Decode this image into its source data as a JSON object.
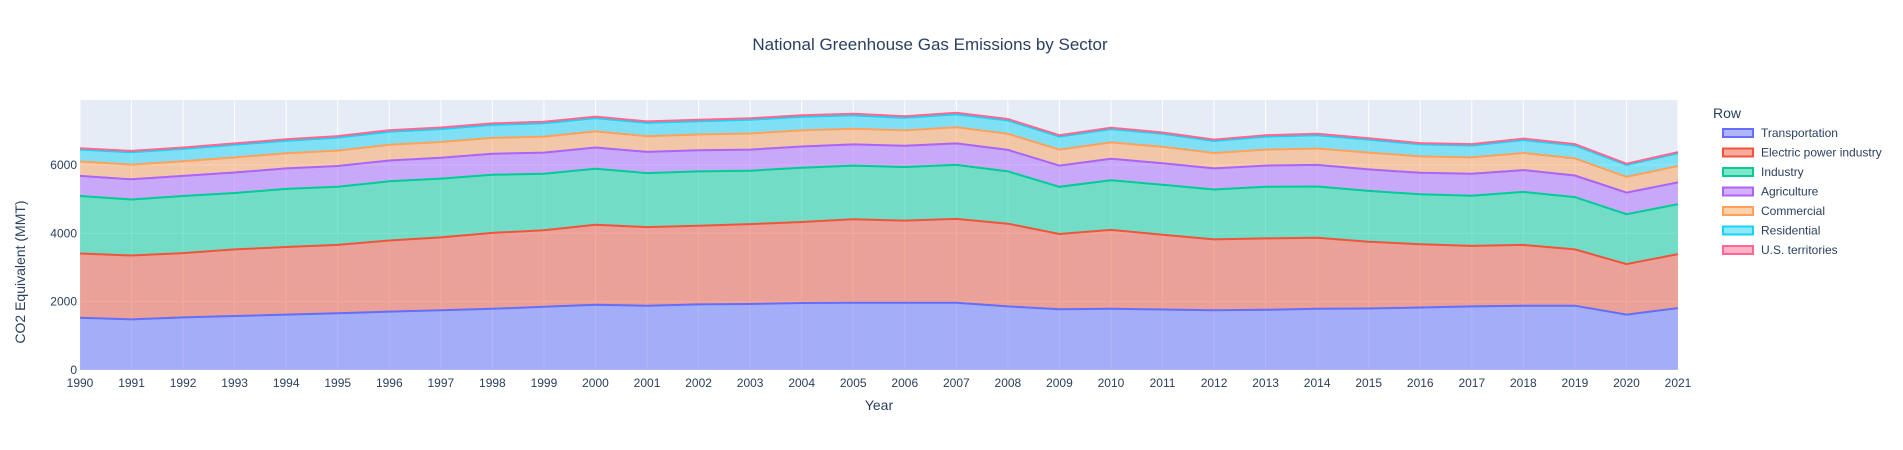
{
  "chart_data": {
    "type": "area",
    "stacked": true,
    "title": "National Greenhouse Gas Emissions by Sector",
    "xlabel": "Year",
    "ylabel": "CO2 Equivalent (MMT)",
    "ylim": [
      0,
      7900
    ],
    "yticks": [
      0,
      2000,
      4000,
      6000
    ],
    "legend_title": "Row",
    "legend_position": "right",
    "x": [
      1990,
      1991,
      1992,
      1993,
      1994,
      1995,
      1996,
      1997,
      1998,
      1999,
      2000,
      2001,
      2002,
      2003,
      2004,
      2005,
      2006,
      2007,
      2008,
      2009,
      2010,
      2011,
      2012,
      2013,
      2014,
      2015,
      2016,
      2017,
      2018,
      2019,
      2020,
      2021
    ],
    "series": [
      {
        "name": "Transportation",
        "color": "#636efa",
        "values": [
          1530,
          1480,
          1540,
          1580,
          1620,
          1660,
          1710,
          1750,
          1790,
          1850,
          1910,
          1880,
          1920,
          1930,
          1960,
          1970,
          1970,
          1970,
          1860,
          1780,
          1790,
          1770,
          1750,
          1760,
          1790,
          1800,
          1830,
          1860,
          1880,
          1880,
          1620,
          1810
        ]
      },
      {
        "name": "Electric power industry",
        "color": "#ef553b",
        "values": [
          1880,
          1870,
          1880,
          1950,
          1980,
          2000,
          2080,
          2130,
          2220,
          2240,
          2340,
          2300,
          2300,
          2340,
          2370,
          2440,
          2400,
          2450,
          2420,
          2200,
          2310,
          2190,
          2070,
          2090,
          2080,
          1950,
          1850,
          1770,
          1780,
          1650,
          1480,
          1580
        ]
      },
      {
        "name": "Industry",
        "color": "#00cc96",
        "values": [
          1680,
          1640,
          1670,
          1650,
          1700,
          1700,
          1730,
          1720,
          1700,
          1650,
          1640,
          1580,
          1590,
          1560,
          1590,
          1570,
          1570,
          1580,
          1530,
          1380,
          1450,
          1460,
          1460,
          1510,
          1500,
          1490,
          1460,
          1470,
          1550,
          1530,
          1460,
          1460
        ]
      },
      {
        "name": "Agriculture",
        "color": "#ab63fa",
        "values": [
          590,
          590,
          590,
          600,
          600,
          610,
          610,
          610,
          620,
          620,
          620,
          620,
          620,
          620,
          620,
          620,
          620,
          630,
          630,
          620,
          630,
          630,
          620,
          620,
          630,
          630,
          630,
          640,
          640,
          630,
          630,
          640
        ]
      },
      {
        "name": "Commercial",
        "color": "#ffa15a",
        "values": [
          420,
          430,
          430,
          440,
          440,
          450,
          460,
          460,
          460,
          470,
          470,
          460,
          460,
          470,
          470,
          460,
          450,
          470,
          470,
          470,
          480,
          480,
          450,
          470,
          480,
          490,
          480,
          480,
          500,
          500,
          460,
          480
        ]
      },
      {
        "name": "Residential",
        "color": "#19d3f3",
        "values": [
          350,
          360,
          360,
          370,
          370,
          380,
          380,
          380,
          380,
          390,
          390,
          390,
          390,
          400,
          400,
          390,
          370,
          380,
          390,
          380,
          390,
          380,
          350,
          380,
          390,
          380,
          350,
          350,
          380,
          380,
          350,
          370
        ]
      },
      {
        "name": "U.S. territories",
        "color": "#ff6692",
        "values": [
          40,
          40,
          40,
          40,
          40,
          45,
          45,
          45,
          45,
          45,
          45,
          45,
          45,
          45,
          45,
          45,
          45,
          45,
          45,
          40,
          40,
          40,
          40,
          40,
          40,
          40,
          40,
          40,
          40,
          40,
          35,
          35
        ]
      }
    ]
  }
}
